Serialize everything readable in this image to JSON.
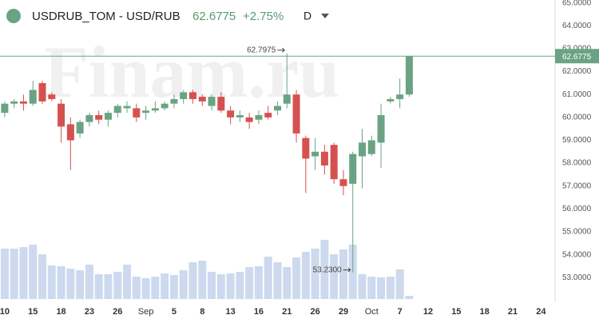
{
  "chart_data": {
    "type": "candlestick",
    "title": "USDRUB_TOM - USD/RUB",
    "change_label": "+2.75%",
    "interval": "D",
    "watermark": "Finam.ru",
    "up_color": "#6aa383",
    "down_color": "#d5514f",
    "volume_color": "#cdd9ee",
    "open": [
      60.2,
      60.6,
      60.7,
      60.6,
      61.5,
      61.0,
      60.6,
      59.7,
      59.3,
      59.8,
      60.1,
      59.9,
      60.2,
      60.4,
      60.4,
      60.2,
      60.3,
      60.4,
      60.6,
      60.8,
      61.1,
      60.9,
      60.5,
      60.9,
      60.3,
      60.0,
      60.0,
      59.9,
      60.2,
      60.3,
      60.6,
      61.0,
      59.1,
      58.3,
      58.5,
      58.8,
      57.3,
      57.1,
      58.3,
      58.4,
      58.9,
      60.7,
      60.8,
      61.0
    ],
    "high": [
      60.7,
      60.8,
      61.0,
      61.6,
      61.6,
      61.1,
      60.8,
      60.0,
      59.9,
      60.2,
      60.3,
      60.3,
      60.6,
      60.7,
      60.6,
      60.5,
      60.7,
      60.7,
      61.0,
      61.2,
      61.2,
      61.0,
      61.0,
      61.1,
      60.5,
      60.3,
      60.2,
      60.3,
      60.5,
      60.7,
      62.7975,
      61.2,
      59.2,
      59.1,
      58.8,
      58.9,
      57.7,
      58.5,
      59.5,
      59.2,
      60.6,
      60.9,
      61.7,
      62.7
    ],
    "low": [
      60.0,
      60.4,
      60.3,
      60.5,
      60.6,
      60.7,
      58.9,
      57.7,
      59.1,
      59.6,
      59.7,
      59.6,
      60.0,
      60.2,
      59.8,
      59.9,
      60.2,
      60.3,
      60.4,
      60.6,
      60.6,
      60.5,
      60.3,
      60.2,
      59.7,
      59.8,
      59.5,
      59.7,
      59.9,
      60.1,
      60.4,
      58.9,
      56.7,
      57.7,
      57.5,
      57.1,
      56.6,
      53.23,
      56.9,
      58.3,
      57.8,
      60.6,
      60.4,
      60.9
    ],
    "close": [
      60.6,
      60.7,
      60.6,
      61.2,
      60.7,
      60.8,
      59.6,
      59.0,
      59.8,
      60.1,
      59.9,
      60.2,
      60.5,
      60.5,
      60.0,
      60.3,
      60.4,
      60.6,
      60.8,
      61.1,
      60.8,
      60.7,
      60.9,
      60.3,
      60.0,
      60.1,
      59.8,
      60.1,
      60.0,
      60.5,
      61.0,
      59.3,
      58.2,
      58.5,
      57.9,
      57.3,
      57.0,
      58.4,
      58.9,
      59.0,
      60.1,
      60.8,
      61.0,
      62.6775
    ],
    "volume": [
      63,
      63,
      65,
      68,
      56,
      42,
      41,
      38,
      36,
      43,
      31,
      31,
      34,
      43,
      28,
      26,
      28,
      32,
      30,
      36,
      46,
      48,
      34,
      31,
      32,
      34,
      40,
      41,
      53,
      46,
      40,
      52,
      59,
      63,
      74,
      56,
      62,
      68,
      31,
      28,
      27,
      28,
      37,
      4
    ],
    "volume_ylim": [
      0,
      100
    ],
    "annotations": [
      62.7975,
      {
        "value": 53.23,
        "label": "53.2300"
      }
    ],
    "xlim": [
      -0.5,
      58.5
    ],
    "xticks": [
      {
        "value": 0,
        "label": "10"
      },
      {
        "value": 3,
        "label": "15"
      },
      {
        "value": 6,
        "label": "18"
      },
      {
        "value": 9,
        "label": "23"
      },
      {
        "value": 12,
        "label": "26"
      },
      {
        "value": 15,
        "label": "Sep"
      },
      {
        "value": 18,
        "label": "5"
      },
      {
        "value": 21,
        "label": "8"
      },
      {
        "value": 24,
        "label": "13"
      },
      {
        "value": 27,
        "label": "16"
      },
      {
        "value": 30,
        "label": "21"
      },
      {
        "value": 33,
        "label": "26"
      },
      {
        "value": 36,
        "label": "29"
      },
      {
        "value": 39,
        "label": "Oct"
      },
      {
        "value": 42,
        "label": "7"
      },
      {
        "value": 45,
        "label": "12"
      },
      {
        "value": 48,
        "label": "15"
      },
      {
        "value": 51,
        "label": "18"
      },
      {
        "value": 54,
        "label": "21"
      },
      {
        "value": 57,
        "label": "24"
      }
    ],
    "ylim": [
      52.1,
      65.13
    ],
    "yticks": [
      {
        "value": 53,
        "label": "53.0000"
      },
      {
        "value": 54,
        "label": "54.0000"
      },
      {
        "value": 55,
        "label": "55.0000"
      },
      {
        "value": 56,
        "label": "56.0000"
      },
      {
        "value": 57,
        "label": "57.0000"
      },
      {
        "value": 58,
        "label": "58.0000"
      },
      {
        "value": 59,
        "label": "59.0000"
      },
      {
        "value": 60,
        "label": "60.0000"
      },
      {
        "value": 61,
        "label": "61.0000"
      },
      {
        "value": 62,
        "label": "62.0000"
      },
      {
        "value": 63,
        "label": "63.0000"
      },
      {
        "value": 64,
        "label": "64.0000"
      },
      {
        "value": 65,
        "label": "65.0000"
      }
    ]
  }
}
